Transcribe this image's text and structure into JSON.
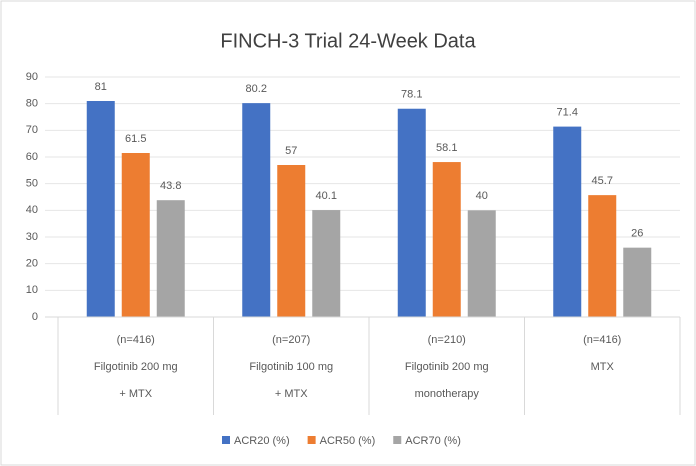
{
  "chart_data": {
    "type": "bar",
    "title": "FINCH-3 Trial 24-Week Data",
    "categories": [
      [
        "(n=416)",
        "Filgotinib 200 mg",
        "+ MTX"
      ],
      [
        "(n=207)",
        "Filgotinib 100 mg",
        "+ MTX"
      ],
      [
        "(n=210)",
        "Filgotinib 200 mg",
        "monotherapy"
      ],
      [
        "(n=416)",
        "MTX"
      ]
    ],
    "series": [
      {
        "name": "ACR20 (%)",
        "color": "#4472c4",
        "values": [
          81,
          80.2,
          78.1,
          71.4
        ]
      },
      {
        "name": "ACR50 (%)",
        "color": "#ed7d31",
        "values": [
          61.5,
          57,
          58.1,
          45.7
        ]
      },
      {
        "name": "ACR70 (%)",
        "color": "#a5a5a5",
        "values": [
          43.8,
          40.1,
          40,
          26
        ]
      }
    ],
    "ylim": [
      0,
      90
    ],
    "yticks": [
      0,
      10,
      20,
      30,
      40,
      50,
      60,
      70,
      80,
      90
    ],
    "grid": true,
    "legend": "bottom"
  }
}
